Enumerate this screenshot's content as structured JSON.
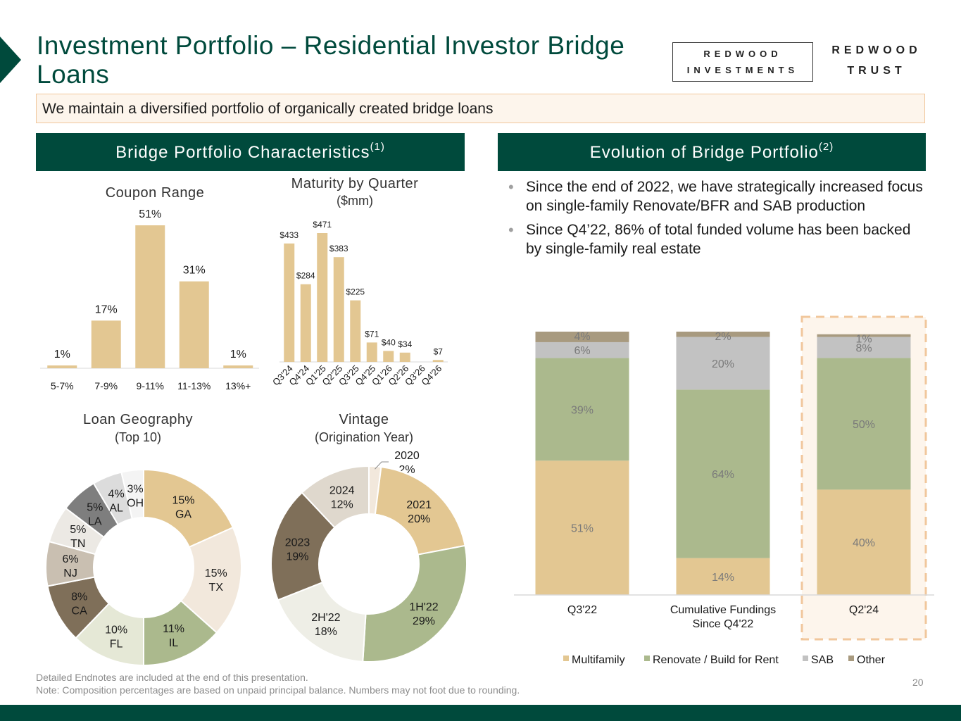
{
  "header": {
    "title": "Investment Portfolio – Residential Investor Bridge Loans",
    "subtitle": "We maintain a diversified portfolio of organically created bridge loans",
    "logo_investments_line1": "REDWOOD",
    "logo_investments_line2": "INVESTMENTS",
    "logo_trust_line1": "REDWOOD",
    "logo_trust_line2": "TRUST"
  },
  "left_panel": {
    "title": "Bridge Portfolio Characteristics",
    "note_mark": "(1)"
  },
  "right_panel": {
    "title": "Evolution of Bridge Portfolio",
    "note_mark": "(2)",
    "bullets": [
      "Since the end of 2022, we have strategically increased focus on single-family Renovate/BFR and SAB production",
      "Since Q4’22, 86% of total funded volume has been backed by single-family real estate"
    ]
  },
  "colors": {
    "dark_green": "#004a3c",
    "tan": "#e3c792",
    "sage": "#abb98d",
    "light_gray": "#c2c2c2",
    "taupe": "#a89a7f",
    "highlight_border": "#f1c79c"
  },
  "chart_data": [
    {
      "id": "coupon",
      "type": "bar",
      "title": "Coupon Range",
      "categories": [
        "5-7%",
        "7-9%",
        "9-11%",
        "11-13%",
        "13%+"
      ],
      "values": [
        1,
        17,
        51,
        31,
        1
      ],
      "labels": [
        "1%",
        "17%",
        "51%",
        "31%",
        "1%"
      ],
      "ylim": [
        0,
        51
      ],
      "color": "#e3c792"
    },
    {
      "id": "maturity",
      "type": "bar",
      "title": "Maturity by Quarter",
      "subtitle": "($mm)",
      "categories": [
        "Q3'24",
        "Q4'24",
        "Q1'25",
        "Q2'25",
        "Q3'25",
        "Q4'25",
        "Q1'26",
        "Q2'26",
        "Q3'26",
        "Q4'26"
      ],
      "values": [
        433,
        284,
        471,
        383,
        225,
        71,
        40,
        34,
        0,
        7
      ],
      "labels": [
        "$433",
        "$284",
        "$471",
        "$383",
        "$225",
        "$71",
        "$40",
        "$34",
        "",
        "$7"
      ],
      "ylim": [
        0,
        471
      ],
      "color": "#e3c792"
    },
    {
      "id": "geography",
      "type": "pie",
      "title": "Loan Geography",
      "subtitle": "(Top 10)",
      "labels": [
        "GA",
        "TX",
        "IL",
        "FL",
        "CA",
        "NJ",
        "TN",
        "LA",
        "AL",
        "OH"
      ],
      "values": [
        15,
        15,
        11,
        10,
        8,
        6,
        5,
        5,
        4,
        3
      ],
      "pct_labels": [
        "15%",
        "15%",
        "11%",
        "10%",
        "8%",
        "6%",
        "5%",
        "5%",
        "4%",
        "3%"
      ],
      "colors": [
        "#e3c792",
        "#f2e8dc",
        "#abb98d",
        "#e5e8d6",
        "#7f6f59",
        "#c9bfb1",
        "#ece9e4",
        "#7e7e7e",
        "#dcdcdc",
        "#f4f4f4"
      ],
      "text_colors": [
        "#1a1a1a",
        "#1a1a1a",
        "#1a1a1a",
        "#1a1a1a",
        "#1a1a1a",
        "#1a1a1a",
        "#1a1a1a",
        "#1a1a1a",
        "#1a1a1a",
        "#1a1a1a"
      ]
    },
    {
      "id": "vintage",
      "type": "pie",
      "title": "Vintage",
      "subtitle": "(Origination Year)",
      "labels": [
        "2020",
        "2021",
        "1H'22",
        "2H'22",
        "2023",
        "2024"
      ],
      "values": [
        2,
        20,
        29,
        18,
        19,
        12
      ],
      "pct_labels": [
        "2%",
        "20%",
        "29%",
        "18%",
        "19%",
        "12%"
      ],
      "colors": [
        "#f2e8dc",
        "#e3c792",
        "#abb98d",
        "#eeeee6",
        "#7f6f59",
        "#dfd8cd"
      ],
      "text_colors": [
        "#1a1a1a",
        "#1a1a1a",
        "#1a1a1a",
        "#1a1a1a",
        "#1a1a1a",
        "#1a1a1a"
      ]
    },
    {
      "id": "evolution",
      "type": "bar",
      "stacked": true,
      "categories": [
        "Q3'22",
        "Cumulative Fundings Since Q4'22",
        "Q2'24"
      ],
      "category_lines": [
        [
          "Q3'22"
        ],
        [
          "Cumulative Fundings",
          "Since Q4'22"
        ],
        [
          "Q2'24"
        ]
      ],
      "series": [
        {
          "name": "Multifamily",
          "values": [
            51,
            14,
            40
          ],
          "labels": [
            "51%",
            "14%",
            "40%"
          ],
          "color": "#e3c792"
        },
        {
          "name": "Renovate / Build for Rent",
          "values": [
            39,
            64,
            50
          ],
          "labels": [
            "39%",
            "64%",
            "50%"
          ],
          "color": "#abb98d"
        },
        {
          "name": "SAB",
          "values": [
            6,
            20,
            8
          ],
          "labels": [
            "6%",
            "20%",
            "8%"
          ],
          "color": "#c2c2c2"
        },
        {
          "name": "Other",
          "values": [
            4,
            2,
            1
          ],
          "labels": [
            "4%",
            "2%",
            "1%"
          ],
          "color": "#a89a7f"
        }
      ],
      "ylim": [
        0,
        100
      ],
      "highlight": "Q2'24",
      "legend": "bottom"
    }
  ],
  "footer": {
    "line1": "Detailed Endnotes are included at the end of this presentation.",
    "line2": "Note: Composition percentages are based on unpaid principal balance. Numbers may not foot due to rounding.",
    "page": "20"
  }
}
